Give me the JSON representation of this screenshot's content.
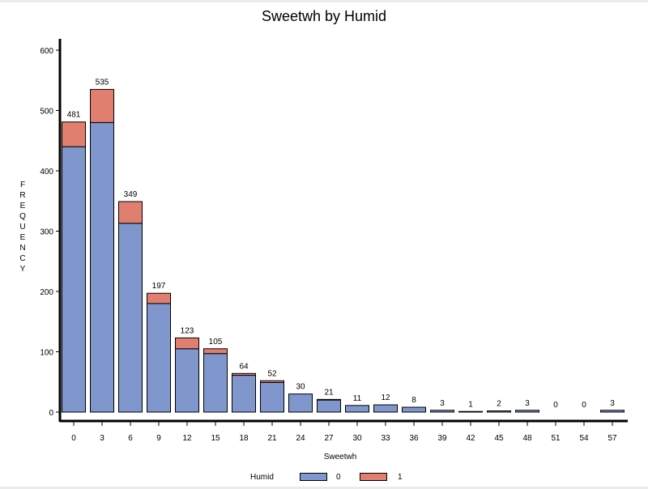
{
  "chart_data": {
    "type": "bar",
    "stacked": true,
    "title": "Sweetwh by Humid",
    "xlabel": "Sweetwh",
    "ylabel": "FREQUENCY",
    "categories": [
      "0",
      "3",
      "6",
      "9",
      "12",
      "15",
      "18",
      "21",
      "24",
      "27",
      "30",
      "33",
      "36",
      "39",
      "42",
      "45",
      "48",
      "51",
      "54",
      "57"
    ],
    "series": [
      {
        "name": "0",
        "color": "#7f97cc",
        "values": [
          440,
          480,
          313,
          180,
          105,
          97,
          61,
          49,
          30,
          20,
          11,
          12,
          8,
          3,
          1,
          2,
          3,
          0,
          0,
          3
        ]
      },
      {
        "name": "1",
        "color": "#e07f70",
        "values": [
          41,
          55,
          36,
          17,
          18,
          8,
          3,
          3,
          0,
          1,
          0,
          0,
          0,
          0,
          0,
          0,
          0,
          0,
          0,
          0
        ]
      }
    ],
    "totals": [
      481,
      535,
      349,
      197,
      123,
      105,
      64,
      52,
      30,
      21,
      11,
      12,
      8,
      3,
      1,
      2,
      3,
      0,
      0,
      3
    ],
    "yticks": [
      0,
      100,
      200,
      300,
      400,
      500,
      600
    ],
    "ylim": [
      0,
      600
    ],
    "legend_title": "Humid",
    "legend_position": "bottom",
    "grid": false
  }
}
